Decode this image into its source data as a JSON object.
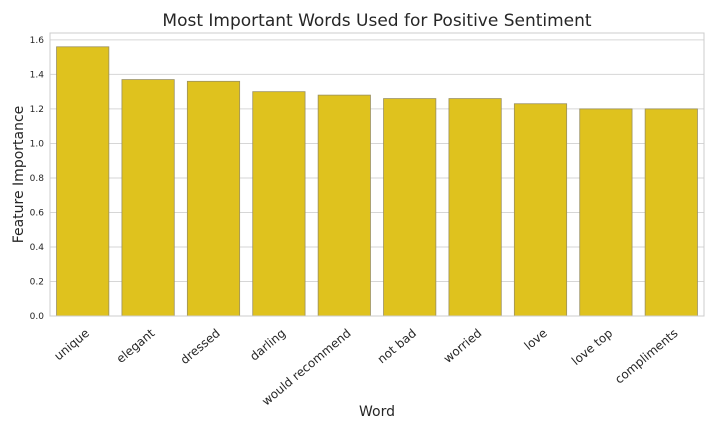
{
  "chart_data": {
    "type": "bar",
    "title": "Most Important Words Used for Positive Sentiment",
    "xlabel": "Word",
    "ylabel": "Feature Importance",
    "categories": [
      "unique",
      "elegant",
      "dressed",
      "darling",
      "would recommend",
      "not bad",
      "worried",
      "love",
      "love top",
      "compliments"
    ],
    "values": [
      1.56,
      1.37,
      1.36,
      1.3,
      1.28,
      1.26,
      1.26,
      1.23,
      1.2,
      1.2
    ],
    "ylim": [
      0,
      1.64
    ],
    "yticks": [
      "0.0",
      "0.2",
      "0.4",
      "0.6",
      "0.8",
      "1.0",
      "1.2",
      "1.4",
      "1.6"
    ],
    "grid": true,
    "legend": "none",
    "bar_color": "#dfc21e",
    "bar_edge_color": "#9a9060",
    "grid_color": "#d6d6d6",
    "spine_color": "#cccccc"
  }
}
